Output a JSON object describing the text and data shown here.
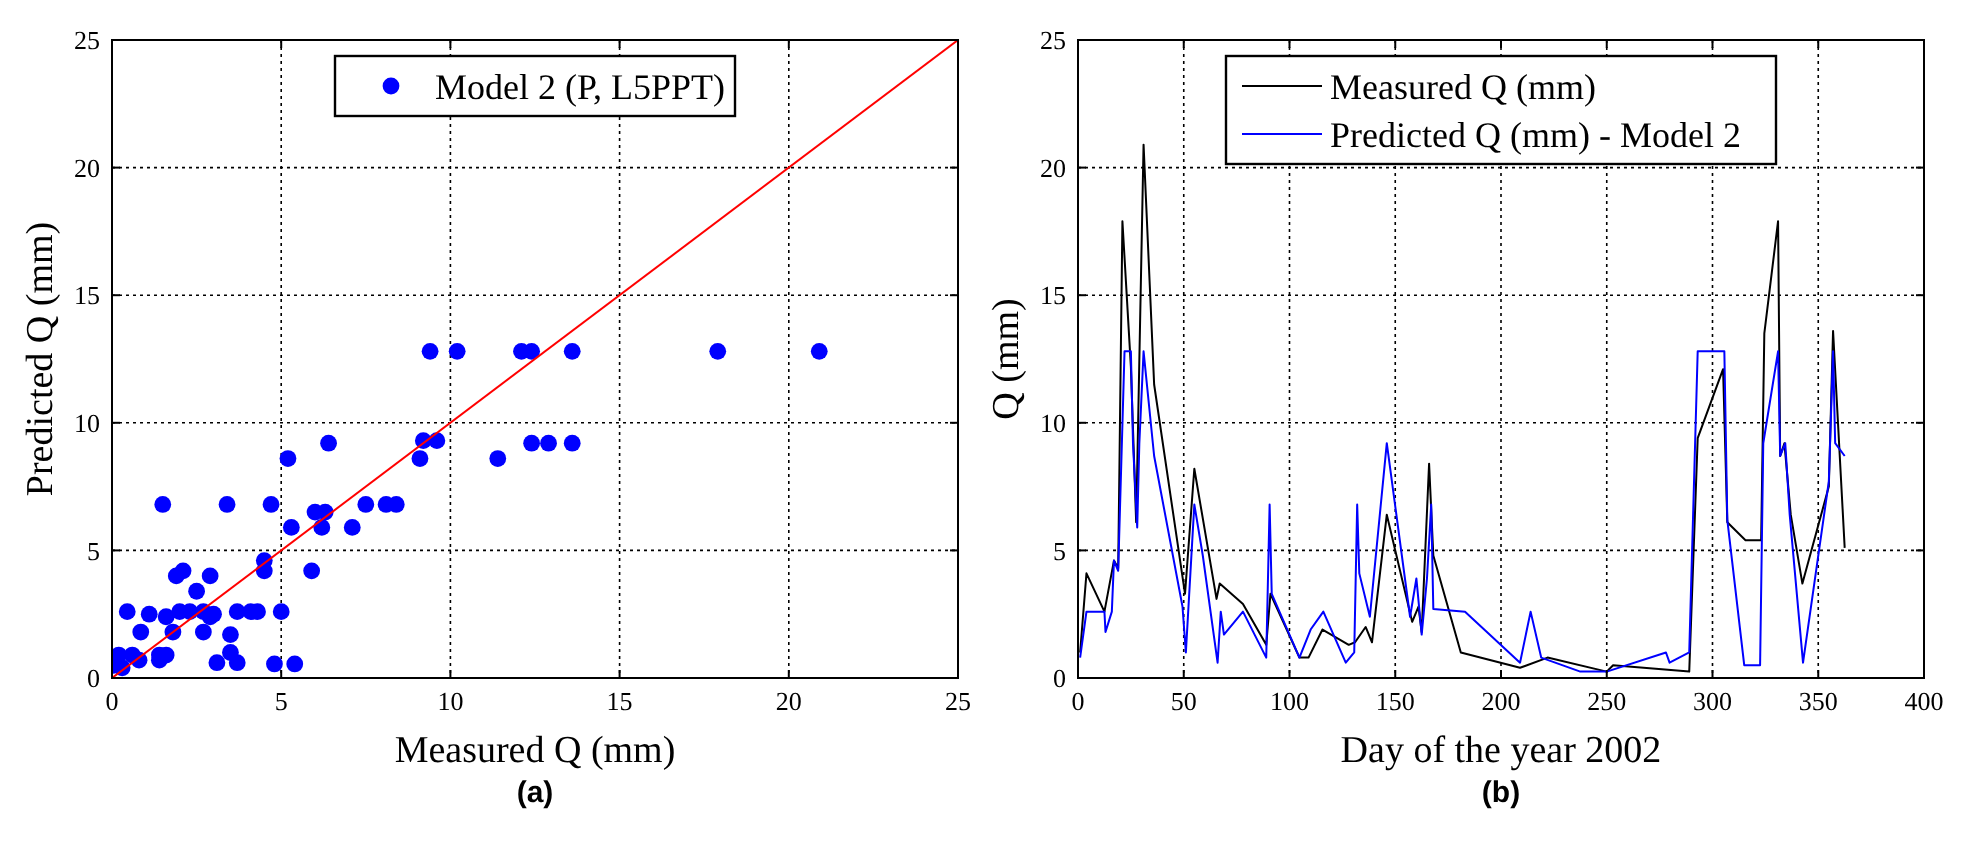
{
  "chart_data": [
    {
      "type": "scatter",
      "xlabel": "Measured Q (mm)",
      "ylabel": "Predicted Q (mm)",
      "xlim": [
        0,
        25
      ],
      "ylim": [
        0,
        25
      ],
      "xticks": [
        0,
        5,
        10,
        15,
        20,
        25
      ],
      "yticks": [
        0,
        5,
        10,
        15,
        20,
        25
      ],
      "grid": true,
      "legend": "top",
      "marker": "circle",
      "annotations": [
        "(a)"
      ],
      "series": [
        {
          "name": "Model 2 (P, L5PPT)",
          "color": "#0000ff",
          "x": [
            9.4,
            10.2,
            12.1,
            12.4,
            13.6,
            17.9,
            20.9,
            9.2,
            9.6,
            9.1,
            11.4,
            12.4,
            12.9,
            13.6,
            5.2,
            6.4,
            1.5,
            3.4,
            4.7,
            7.5,
            8.1,
            8.4,
            6.0,
            6.3,
            5.3,
            6.2,
            7.1,
            5.9,
            4.5,
            4.5,
            1.9,
            2.1,
            2.9,
            2.5,
            0.45,
            1.1,
            1.6,
            2.0,
            2.3,
            2.7,
            3.0,
            3.7,
            4.1,
            4.3,
            5.0,
            0.85,
            1.8,
            2.7,
            2.9,
            3.5,
            0.2,
            0.6,
            0.8,
            1.4,
            1.6,
            1.4,
            3.1,
            3.5,
            3.7,
            4.8,
            5.4,
            0.3,
            0.05
          ],
          "values": [
            12.8,
            12.8,
            12.8,
            12.8,
            12.8,
            12.8,
            12.8,
            9.3,
            9.3,
            8.6,
            8.6,
            9.2,
            9.2,
            9.2,
            8.6,
            9.2,
            6.8,
            6.8,
            6.8,
            6.8,
            6.8,
            6.8,
            6.5,
            6.5,
            5.9,
            5.9,
            5.9,
            4.2,
            4.6,
            4.2,
            4.0,
            4.2,
            4.0,
            3.4,
            2.6,
            2.5,
            2.4,
            2.6,
            2.6,
            2.6,
            2.5,
            2.6,
            2.6,
            2.6,
            2.6,
            1.8,
            1.8,
            1.8,
            2.4,
            1.7,
            0.9,
            0.9,
            0.7,
            0.9,
            0.9,
            0.7,
            0.6,
            1.0,
            0.6,
            0.55,
            0.55,
            0.4,
            0.5
          ]
        },
        {
          "type": "line",
          "marker": "none",
          "color": "#ff0000",
          "x": [
            0,
            25
          ],
          "values": [
            0,
            25
          ]
        }
      ]
    },
    {
      "type": "line",
      "xlabel": "Day of the year 2002",
      "ylabel": "Q (mm)",
      "xlim": [
        0,
        400
      ],
      "ylim": [
        0,
        25
      ],
      "xticks": [
        0,
        50,
        100,
        150,
        200,
        250,
        300,
        350,
        400
      ],
      "yticks": [
        0,
        5,
        10,
        15,
        20,
        25
      ],
      "grid": true,
      "legend": "top",
      "annotations": [
        "(b)"
      ],
      "series": [
        {
          "name": "Measured Q (mm)",
          "color": "#000000",
          "x": [
            1,
            4,
            12.5,
            17,
            19,
            21,
            25,
            27.5,
            31,
            36,
            50.6,
            55,
            65.5,
            67,
            78,
            89,
            91,
            104.7,
            109,
            115.6,
            128,
            131,
            136,
            139,
            146,
            158,
            161,
            162.5,
            166,
            168,
            181,
            209,
            222,
            250,
            253,
            289,
            293,
            305,
            307,
            315.6,
            323,
            324.5,
            331,
            332,
            334,
            337,
            342.5,
            355,
            357,
            362.5
          ],
          "values": [
            1.0,
            4.1,
            2.6,
            4.6,
            4.3,
            17.9,
            12.2,
            6.1,
            20.9,
            11.5,
            3.3,
            8.2,
            3.1,
            3.7,
            2.9,
            1.3,
            3.3,
            0.8,
            0.8,
            1.9,
            1.3,
            1.4,
            2.0,
            1.4,
            6.4,
            2.2,
            2.8,
            1.8,
            8.4,
            4.8,
            1.0,
            0.4,
            0.8,
            0.25,
            0.5,
            0.25,
            9.4,
            12.1,
            6.1,
            5.4,
            5.4,
            13.5,
            17.9,
            8.7,
            9.2,
            6.4,
            3.7,
            7.5,
            13.6,
            5.1
          ]
        },
        {
          "name": "Predicted Q (mm) - Model 2",
          "color": "#0000ff",
          "x": [
            1,
            4,
            12.5,
            13,
            16,
            17,
            19,
            22,
            25,
            26,
            28,
            29,
            31,
            36,
            49.4,
            51,
            55,
            59,
            66,
            67.5,
            69,
            78,
            89,
            90.6,
            91.6,
            104.7,
            110,
            116,
            126.6,
            130.6,
            132,
            133,
            138,
            146,
            157,
            160,
            162.5,
            165,
            167,
            168,
            183,
            209,
            214,
            219,
            237.5,
            250,
            278,
            279.7,
            289,
            293,
            305.6,
            307,
            315,
            322.5,
            324,
            331,
            332,
            334.4,
            336.5,
            342.8,
            355,
            357,
            358,
            362.5
          ],
          "values": [
            0.8,
            2.6,
            2.6,
            1.8,
            2.6,
            4.6,
            4.2,
            12.8,
            12.8,
            9.2,
            5.9,
            9.2,
            12.8,
            8.7,
            2.8,
            1.0,
            6.8,
            4.8,
            0.6,
            2.6,
            1.7,
            2.6,
            0.8,
            6.8,
            3.3,
            0.8,
            1.9,
            2.6,
            0.6,
            1.0,
            6.8,
            4.1,
            2.4,
            9.2,
            2.4,
            3.9,
            1.7,
            3.9,
            6.8,
            2.7,
            2.6,
            0.6,
            2.6,
            0.8,
            0.25,
            0.25,
            1.0,
            0.6,
            1.0,
            12.8,
            12.8,
            6.2,
            0.5,
            0.5,
            9.2,
            12.8,
            8.7,
            9.2,
            6.4,
            0.6,
            7.7,
            12.8,
            9.2,
            8.7
          ]
        }
      ]
    }
  ]
}
